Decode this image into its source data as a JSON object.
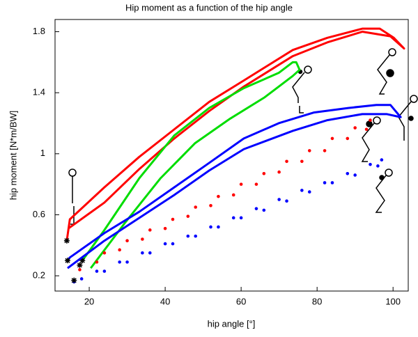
{
  "chart_data": {
    "type": "line",
    "title": "Hip moment as a function of the hip angle",
    "x_label": "hip angle [°]",
    "y_label": "hip moment [N*m/BW]",
    "xlim": [
      11,
      104
    ],
    "ylim": [
      0.1,
      1.88
    ],
    "xticks": [
      20,
      40,
      60,
      80,
      100
    ],
    "yticks": [
      0.2,
      0.6,
      1,
      1.4,
      1.8
    ],
    "grid": false,
    "series": [
      {
        "color": "#ff0000",
        "style": "line",
        "x": [
          14.1,
          14.9,
          24,
          33.2,
          42.4,
          51.6,
          60.7,
          73.6,
          82.7,
          91.9,
          96.5,
          100.2,
          102.9,
          99.3,
          91.9,
          82.7,
          73.6,
          60.7,
          51.6,
          42.4,
          33.2,
          24,
          14.5
        ],
        "values": [
          0.43,
          0.57,
          0.78,
          0.98,
          1.16,
          1.34,
          1.48,
          1.68,
          1.76,
          1.82,
          1.82,
          1.76,
          1.69,
          1.77,
          1.8,
          1.73,
          1.64,
          1.44,
          1.28,
          1.1,
          0.9,
          0.68,
          0.51
        ]
      },
      {
        "color": "#00dd00",
        "style": "line",
        "x": [
          18.2,
          24,
          33.2,
          42.4,
          51.6,
          60.7,
          69.9,
          73.6,
          74.5,
          75.4,
          73.6,
          66.2,
          57.1,
          47.9,
          38.8,
          29.5,
          20.4
        ],
        "values": [
          0.3,
          0.5,
          0.84,
          1.12,
          1.3,
          1.43,
          1.53,
          1.6,
          1.6,
          1.55,
          1.51,
          1.37,
          1.23,
          1.07,
          0.84,
          0.55,
          0.25
        ]
      },
      {
        "color": "#0000ff",
        "style": "line",
        "x": [
          14.3,
          14.9,
          24,
          33.2,
          42.4,
          51.6,
          60.7,
          69.9,
          79.1,
          88.2,
          95.6,
          99.3,
          102,
          98.3,
          91.9,
          82.7,
          73.6,
          60.7,
          51.6,
          42.4,
          33.2,
          24,
          14.3
        ],
        "values": [
          0.3,
          0.32,
          0.48,
          0.62,
          0.78,
          0.94,
          1.1,
          1.2,
          1.27,
          1.3,
          1.32,
          1.32,
          1.24,
          1.26,
          1.26,
          1.22,
          1.15,
          1.03,
          0.89,
          0.73,
          0.58,
          0.43,
          0.25
        ]
      },
      {
        "color": "#ff0000",
        "style": "dots",
        "x": [
          17.5,
          24,
          30,
          36,
          42,
          48,
          54,
          60,
          66,
          72,
          78,
          84,
          90,
          94,
          93,
          88,
          82,
          76,
          70,
          64,
          58,
          52,
          46,
          40,
          34,
          28,
          22,
          17.5
        ],
        "values": [
          0.27,
          0.35,
          0.43,
          0.5,
          0.57,
          0.65,
          0.72,
          0.8,
          0.87,
          0.95,
          1.02,
          1.1,
          1.17,
          1.22,
          1.16,
          1.1,
          1.02,
          0.95,
          0.88,
          0.8,
          0.73,
          0.66,
          0.59,
          0.51,
          0.44,
          0.37,
          0.29,
          0.24
        ]
      },
      {
        "color": "#0000ff",
        "style": "dots",
        "x": [
          16,
          22,
          28,
          34,
          40,
          46,
          52,
          58,
          64,
          70,
          76,
          82,
          88,
          94,
          97,
          96,
          90,
          84,
          78,
          72,
          66,
          60,
          54,
          48,
          42,
          36,
          30,
          24,
          18,
          16
        ],
        "values": [
          0.17,
          0.23,
          0.29,
          0.35,
          0.41,
          0.46,
          0.52,
          0.58,
          0.64,
          0.7,
          0.76,
          0.81,
          0.87,
          0.93,
          0.96,
          0.92,
          0.86,
          0.81,
          0.75,
          0.69,
          0.63,
          0.58,
          0.52,
          0.46,
          0.41,
          0.35,
          0.29,
          0.23,
          0.18,
          0.16
        ]
      }
    ]
  }
}
